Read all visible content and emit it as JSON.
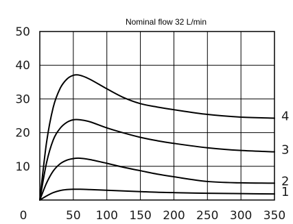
{
  "chart_data": {
    "type": "line",
    "title": "Nominal flow 32 L/min",
    "xlabel": "",
    "ylabel": "",
    "xlim": [
      0,
      350
    ],
    "ylim": [
      0,
      50
    ],
    "x_ticks": [
      0,
      50,
      100,
      150,
      200,
      250,
      300,
      350
    ],
    "x_tick_labels": [
      "0",
      "50",
      "100",
      "150",
      "200",
      "250",
      "300",
      "350"
    ],
    "y_ticks": [
      0,
      10,
      20,
      30,
      40,
      50
    ],
    "y_tick_labels": [
      "0",
      "10",
      "20",
      "30",
      "40",
      "50"
    ],
    "grid": true,
    "series": [
      {
        "name": "1",
        "x": [
          0,
          10,
          20,
          30,
          40,
          50,
          60,
          75,
          100,
          125,
          150,
          175,
          200,
          250,
          300,
          350
        ],
        "y": [
          0,
          1.2,
          2.2,
          2.8,
          3.1,
          3.2,
          3.2,
          3.1,
          2.9,
          2.7,
          2.5,
          2.3,
          2.2,
          2.0,
          1.9,
          1.8
        ]
      },
      {
        "name": "2",
        "x": [
          0,
          10,
          20,
          30,
          40,
          50,
          60,
          75,
          100,
          125,
          150,
          175,
          200,
          250,
          300,
          350
        ],
        "y": [
          0,
          5.0,
          8.6,
          10.7,
          11.8,
          12.3,
          12.4,
          12.0,
          10.9,
          9.7,
          8.7,
          7.7,
          6.9,
          5.5,
          5.1,
          5.0
        ]
      },
      {
        "name": "3",
        "x": [
          0,
          10,
          20,
          30,
          40,
          50,
          60,
          75,
          100,
          125,
          150,
          175,
          200,
          250,
          300,
          350
        ],
        "y": [
          0,
          11.0,
          17.8,
          21.2,
          23.0,
          23.8,
          23.8,
          23.2,
          21.4,
          19.9,
          18.6,
          17.6,
          16.8,
          15.5,
          14.7,
          14.3
        ]
      },
      {
        "name": "4",
        "x": [
          0,
          10,
          20,
          30,
          40,
          50,
          60,
          75,
          100,
          125,
          150,
          175,
          200,
          250,
          300,
          350
        ],
        "y": [
          0,
          17.0,
          27.5,
          33.0,
          35.8,
          37.0,
          37.0,
          35.8,
          33.0,
          30.4,
          28.6,
          27.6,
          26.8,
          25.4,
          24.6,
          24.3
        ]
      }
    ]
  }
}
